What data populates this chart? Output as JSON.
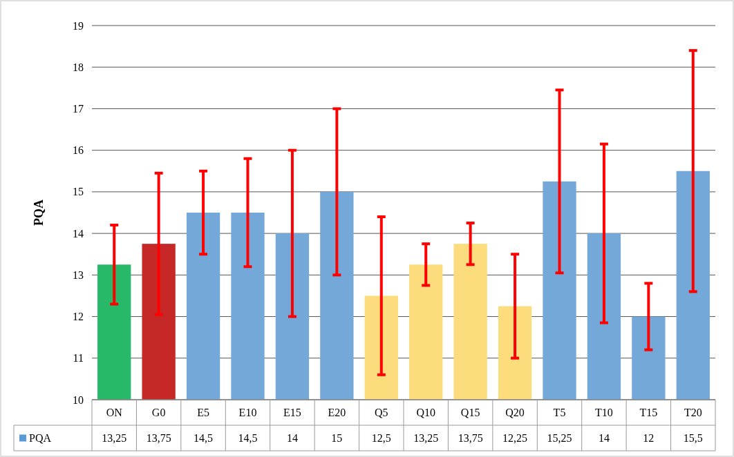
{
  "chart_data": {
    "type": "bar",
    "ylabel": "PQA",
    "categories": [
      "ON",
      "G0",
      "E5",
      "E10",
      "E15",
      "E20",
      "Q5",
      "Q10",
      "Q15",
      "Q20",
      "T5",
      "T10",
      "T15",
      "T20"
    ],
    "series": [
      {
        "name": "PQA",
        "color": "#5b9bd5",
        "values": [
          13.25,
          13.75,
          14.5,
          14.5,
          14,
          15,
          12.5,
          13.25,
          13.75,
          12.25,
          15.25,
          14,
          12,
          15.5
        ],
        "colors": [
          "#27b967",
          "#c62828",
          "#73a8d9",
          "#73a8d9",
          "#73a8d9",
          "#73a8d9",
          "#fddc7e",
          "#fddc7e",
          "#fddc7e",
          "#fddc7e",
          "#73a8d9",
          "#73a8d9",
          "#73a8d9",
          "#73a8d9"
        ],
        "errors": [
          0.95,
          1.7,
          1,
          1.3,
          2,
          2,
          1.9,
          0.5,
          0.5,
          1.25,
          2.2,
          2.15,
          0.8,
          2.9
        ],
        "value_labels": [
          "13,25",
          "13,75",
          "14,5",
          "14,5",
          "14",
          "15",
          "12,5",
          "13,25",
          "13,75",
          "12,25",
          "15,25",
          "14",
          "12",
          "15,5"
        ]
      }
    ],
    "ylim": [
      10,
      19
    ],
    "yticks": [
      10,
      11,
      12,
      13,
      14,
      15,
      16,
      17,
      18,
      19
    ],
    "grid": "y",
    "legend": "bottom"
  }
}
